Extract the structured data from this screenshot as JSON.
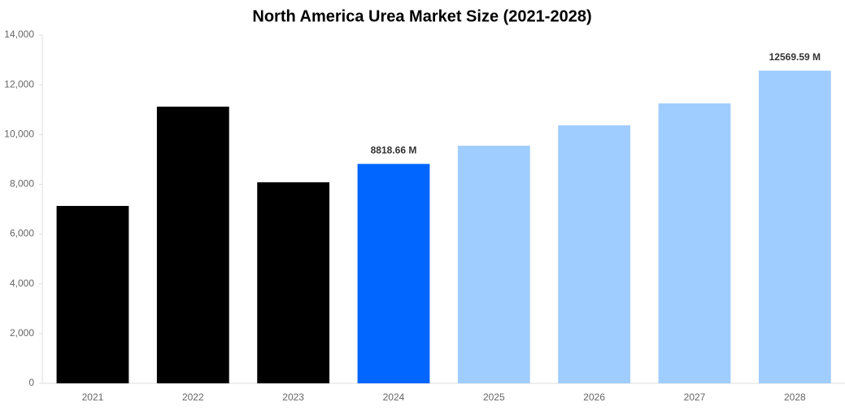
{
  "chart_data": {
    "type": "bar",
    "title": "North America Urea Market Size (2021-2028)",
    "categories": [
      "2021",
      "2022",
      "2023",
      "2024",
      "2025",
      "2026",
      "2027",
      "2028"
    ],
    "values": [
      7130,
      11120,
      8080,
      8818.66,
      9550,
      10370,
      11250,
      12569.59
    ],
    "value_labels": [
      null,
      null,
      null,
      "8818.66 M",
      null,
      null,
      null,
      "12569.59 M"
    ],
    "colors": [
      "#000000",
      "#000000",
      "#000000",
      "#0066ff",
      "#a0cdff",
      "#a0cdff",
      "#a0cdff",
      "#a0cdff"
    ],
    "ylim": [
      0,
      14000
    ],
    "yticks": [
      0,
      {
        "value": 2000,
        "label": "2,000"
      },
      {
        "value": 4000,
        "label": "4,000"
      },
      {
        "value": 6000,
        "label": "6,000"
      },
      {
        "value": 8000,
        "label": "8,000"
      },
      {
        "value": 10000,
        "label": "10,000"
      },
      {
        "value": 12000,
        "label": "12,000"
      },
      {
        "value": 14000,
        "label": "14,000"
      }
    ],
    "grid": false
  }
}
